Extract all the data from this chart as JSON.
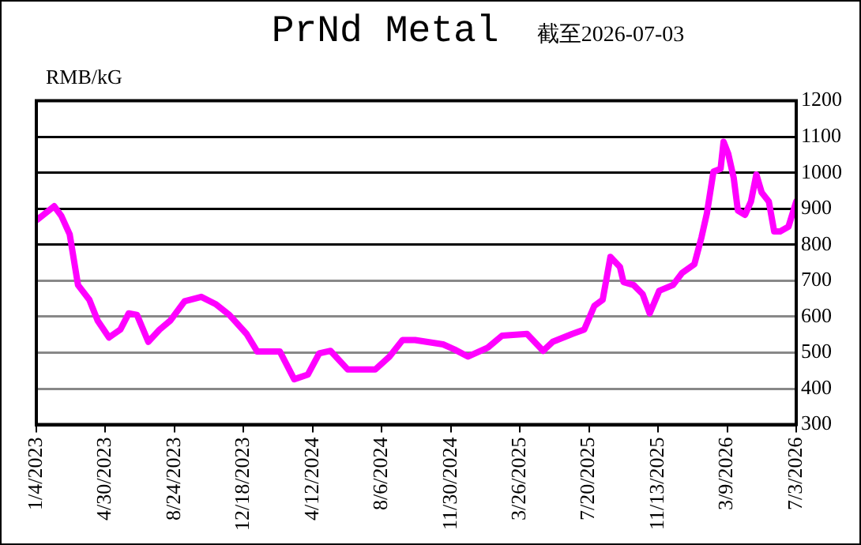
{
  "chart_data": {
    "type": "line",
    "title": "PrNd Metal",
    "subtitle": "截至2026-07-03",
    "ylabel": "RMB/kG",
    "x": [
      "2023-01-04",
      "2023-01-06",
      "2023-02-03",
      "2023-02-15",
      "2023-03-01",
      "2023-03-15",
      "2023-04-03",
      "2023-04-17",
      "2023-05-06",
      "2023-05-25",
      "2023-06-08",
      "2023-06-22",
      "2023-07-11",
      "2023-07-30",
      "2023-08-17",
      "2023-09-10",
      "2023-10-08",
      "2023-11-01",
      "2023-11-24",
      "2023-12-23",
      "2024-01-10",
      "2024-02-17",
      "2024-03-12",
      "2024-04-04",
      "2024-04-23",
      "2024-05-12",
      "2024-06-10",
      "2024-07-26",
      "2024-08-19",
      "2024-09-10",
      "2024-10-01",
      "2024-11-17",
      "2024-12-06",
      "2024-12-29",
      "2025-01-31",
      "2025-02-24",
      "2025-04-07",
      "2025-05-04",
      "2025-05-20",
      "2025-06-22",
      "2025-07-12",
      "2025-07-29",
      "2025-08-12",
      "2025-08-25",
      "2025-09-10",
      "2025-09-16",
      "2025-10-03",
      "2025-10-18",
      "2025-10-30",
      "2025-11-15",
      "2025-12-08",
      "2025-12-23",
      "2026-01-13",
      "2026-01-25",
      "2026-02-03",
      "2026-02-14",
      "2026-02-26",
      "2026-03-03",
      "2026-03-11",
      "2026-03-20",
      "2026-03-27",
      "2026-04-08",
      "2026-04-18",
      "2026-04-27",
      "2026-05-06",
      "2026-05-18",
      "2026-05-27",
      "2026-06-06",
      "2026-06-20",
      "2026-07-03"
    ],
    "series": [
      {
        "color": "#ff00ff",
        "values": [
          875,
          870,
          907,
          880,
          829,
          688,
          647,
          589,
          542,
          564,
          609,
          605,
          530,
          564,
          589,
          643,
          655,
          635,
          605,
          552,
          503,
          503,
          426,
          439,
          498,
          505,
          453,
          453,
          489,
          535,
          535,
          523,
          509,
          489,
          514,
          547,
          552,
          505,
          530,
          552,
          564,
          630,
          647,
          766,
          738,
          696,
          688,
          663,
          609,
          672,
          688,
          721,
          746,
          821,
          887,
          1003,
          1011,
          1086,
          1052,
          986,
          895,
          883,
          920,
          995,
          945,
          920,
          837,
          837,
          850,
          920
        ]
      }
    ],
    "xlim": [
      "2023-01-04",
      "2026-07-03"
    ],
    "xticks": [
      {
        "value": "2023-01-04",
        "label": "1/4/2023"
      },
      {
        "value": "2023-04-30",
        "label": "4/30/2023"
      },
      {
        "value": "2023-08-24",
        "label": "8/24/2023"
      },
      {
        "value": "2023-12-18",
        "label": "12/18/2023"
      },
      {
        "value": "2024-04-12",
        "label": "4/12/2024"
      },
      {
        "value": "2024-08-06",
        "label": "8/6/2024"
      },
      {
        "value": "2024-11-30",
        "label": "11/30/2024"
      },
      {
        "value": "2025-03-26",
        "label": "3/26/2025"
      },
      {
        "value": "2025-07-20",
        "label": "7/20/2025"
      },
      {
        "value": "2025-11-13",
        "label": "11/13/2025"
      },
      {
        "value": "2026-03-09",
        "label": "3/9/2026"
      },
      {
        "value": "2026-07-03",
        "label": "7/3/2026"
      }
    ],
    "ylim": [
      300,
      1200
    ],
    "yticks": [
      300,
      400,
      500,
      600,
      700,
      800,
      900,
      1000,
      1100,
      1200
    ],
    "grid": "y",
    "legend": false,
    "marker": "none",
    "line_style": "solid"
  }
}
